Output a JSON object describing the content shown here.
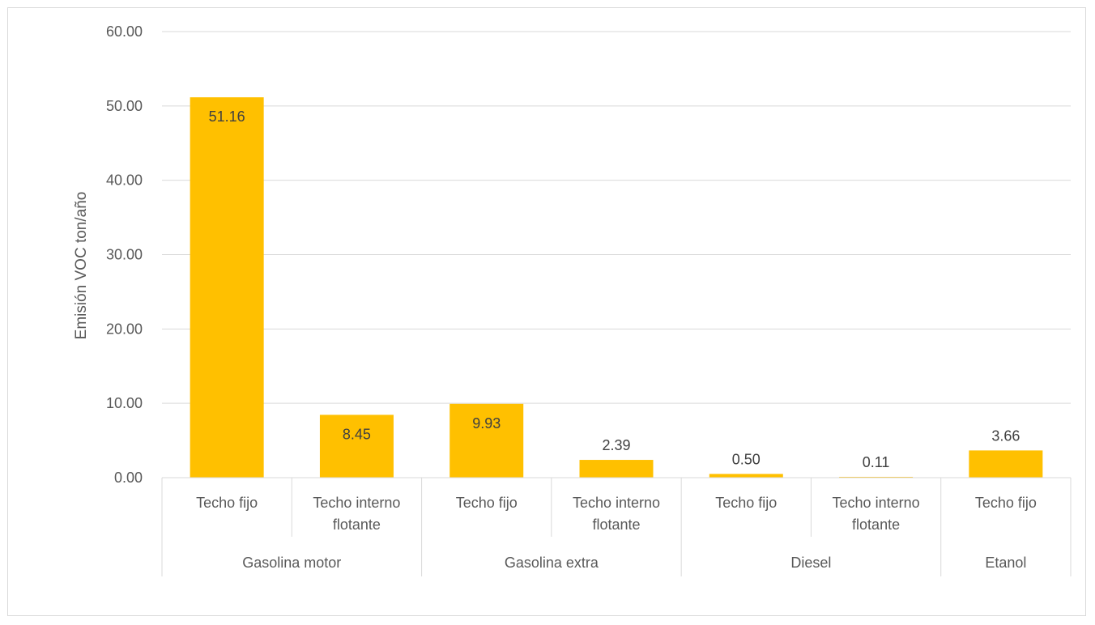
{
  "chart_data": {
    "type": "bar",
    "title": "",
    "ylabel": "Emisión VOC ton/año",
    "xlabel": "",
    "ylim": [
      0,
      60
    ],
    "y_ticks": [
      "0.00",
      "10.00",
      "20.00",
      "30.00",
      "40.00",
      "50.00",
      "60.00"
    ],
    "grid": true,
    "bar_color": "#FFC000",
    "groups": [
      {
        "name": "Gasolina motor",
        "categories": [
          [
            "Techo fijo"
          ],
          [
            "Techo interno",
            "flotante"
          ]
        ]
      },
      {
        "name": "Gasolina extra",
        "categories": [
          [
            "Techo fijo"
          ],
          [
            "Techo interno",
            "flotante"
          ]
        ]
      },
      {
        "name": "Diesel",
        "categories": [
          [
            "Techo fijo"
          ],
          [
            "Techo interno",
            "flotante"
          ]
        ]
      },
      {
        "name": "Etanol",
        "categories": [
          [
            "Techo fijo"
          ]
        ]
      }
    ],
    "values": [
      51.16,
      8.45,
      9.93,
      2.39,
      0.5,
      0.11,
      3.66
    ],
    "value_labels": [
      "51.16",
      "8.45",
      "9.93",
      "2.39",
      "0.50",
      "0.11",
      "3.66"
    ]
  }
}
